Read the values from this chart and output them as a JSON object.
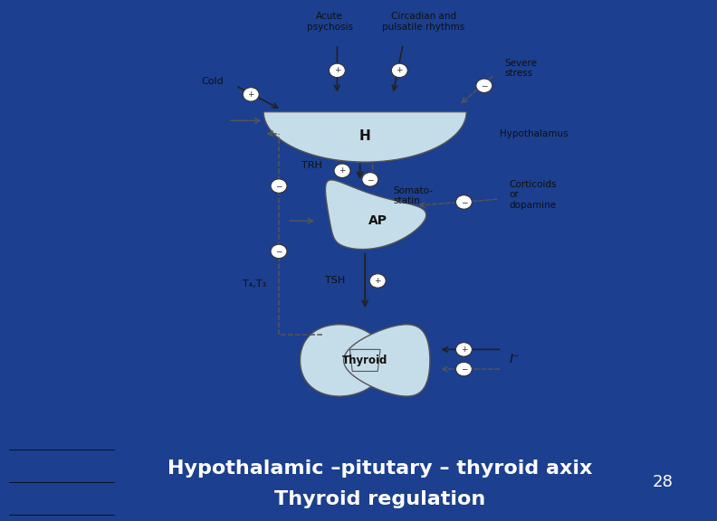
{
  "bg_outer": "#1c3f8f",
  "bg_slide": "#f5f5f0",
  "bg_caption": "#3db8d0",
  "caption_line1": "Hypothalamic –pitutary – thyroid axix",
  "caption_line2": "Thyroid regulation",
  "page_number": "28",
  "caption_text_color": "#ffffff",
  "caption_fontsize": 16,
  "slide_color": "#f8f8f4",
  "light_blue": "#c5dde8",
  "arrow_color": "#222222",
  "dashed_color": "#555555",
  "circle_color": "#333333",
  "text_color": "#111111",
  "hx": 0.47,
  "hy": 0.76,
  "apx": 0.47,
  "apy": 0.52,
  "thx": 0.47,
  "thy": 0.19
}
